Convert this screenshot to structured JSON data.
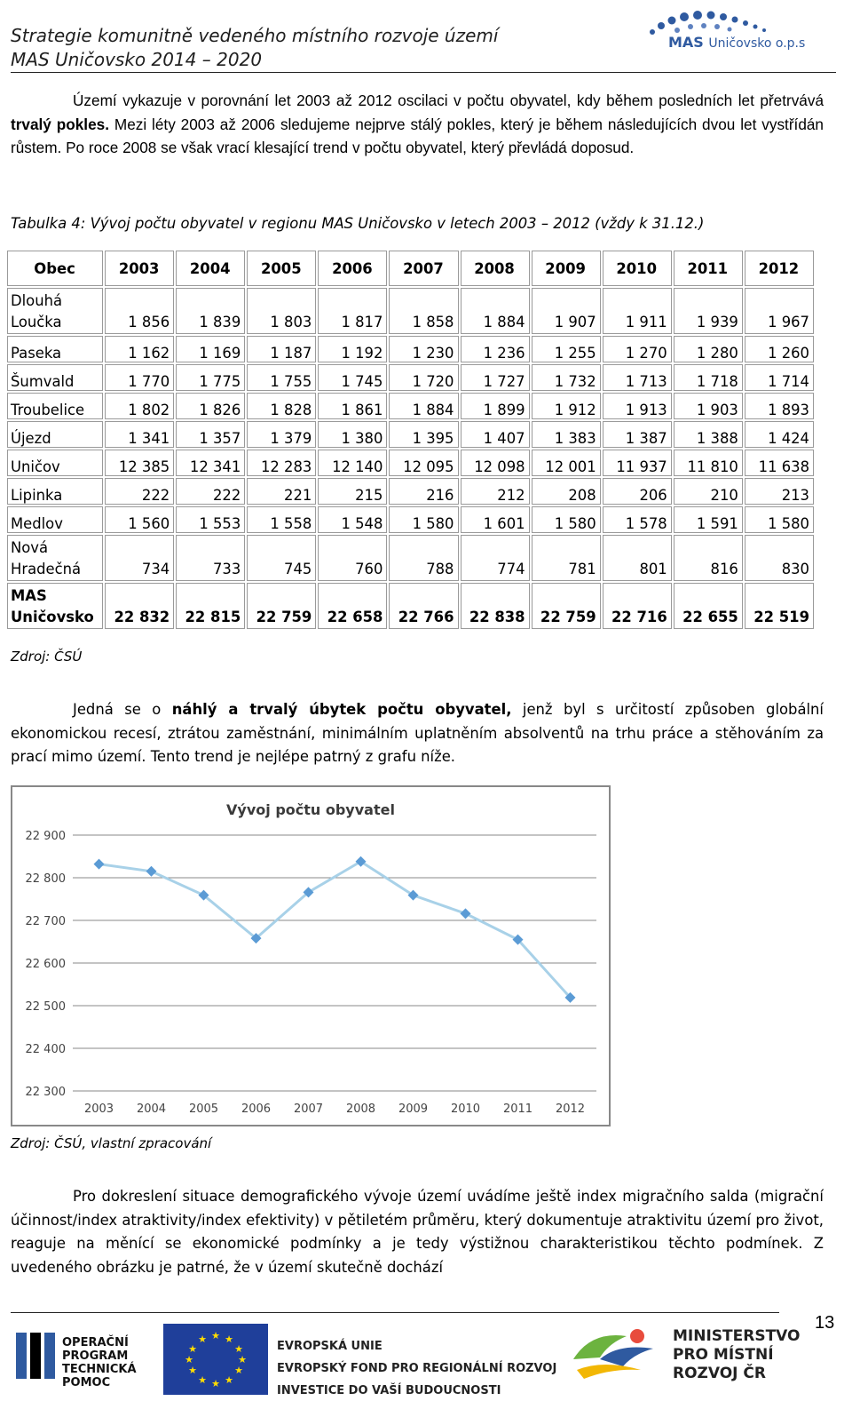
{
  "header": {
    "line1": "Strategie komunitně vedeného místního rozvoje území",
    "line2": "MAS Uničovsko 2014 – 2020",
    "logo_main": "MAS",
    "logo_sub": "Uničovsko o.p.s"
  },
  "para1": {
    "t1": "Území vykazuje v porovnání let 2003 až 2012 oscilaci v počtu obyvatel, kdy během posledních let přetrvává ",
    "b1": "trvalý pokles.",
    "t2": " Mezi léty 2003 až 2006 sledujeme nejprve stálý pokles, který je během následujících dvou let vystřídán růstem. Po roce 2008 se však vrací klesající trend v počtu obyvatel, který převládá doposud."
  },
  "table_caption": "Tabulka 4: Vývoj počtu obyvatel v regionu MAS Uničovsko v letech 2003 – 2012 (vždy k 31.12.)",
  "table": {
    "header": [
      "Obec",
      "2003",
      "2004",
      "2005",
      "2006",
      "2007",
      "2008",
      "2009",
      "2010",
      "2011",
      "2012"
    ],
    "rows": [
      {
        "name": [
          "Dlouhá",
          "Loučka"
        ],
        "values": [
          "1 856",
          "1 839",
          "1 803",
          "1 817",
          "1 858",
          "1 884",
          "1 907",
          "1 911",
          "1 939",
          "1 967"
        ]
      },
      {
        "name": [
          "Paseka"
        ],
        "values": [
          "1 162",
          "1 169",
          "1 187",
          "1 192",
          "1 230",
          "1 236",
          "1 255",
          "1 270",
          "1 280",
          "1 260"
        ]
      },
      {
        "name": [
          "Šumvald"
        ],
        "values": [
          "1 770",
          "1 775",
          "1 755",
          "1 745",
          "1 720",
          "1 727",
          "1 732",
          "1 713",
          "1 718",
          "1 714"
        ]
      },
      {
        "name": [
          "Troubelice"
        ],
        "values": [
          "1 802",
          "1 826",
          "1 828",
          "1 861",
          "1 884",
          "1 899",
          "1 912",
          "1 913",
          "1 903",
          "1 893"
        ]
      },
      {
        "name": [
          "Újezd"
        ],
        "values": [
          "1 341",
          "1 357",
          "1 379",
          "1 380",
          "1 395",
          "1 407",
          "1 383",
          "1 387",
          "1 388",
          "1 424"
        ]
      },
      {
        "name": [
          "Uničov"
        ],
        "values": [
          "12 385",
          "12 341",
          "12 283",
          "12 140",
          "12 095",
          "12 098",
          "12 001",
          "11 937",
          "11 810",
          "11 638"
        ]
      },
      {
        "name": [
          "Lipinka"
        ],
        "values": [
          "222",
          "222",
          "221",
          "215",
          "216",
          "212",
          "208",
          "206",
          "210",
          "213"
        ]
      },
      {
        "name": [
          "Medlov"
        ],
        "values": [
          "1 560",
          "1 553",
          "1 558",
          "1 548",
          "1 580",
          "1 601",
          "1 580",
          "1 578",
          "1 591",
          "1 580"
        ]
      },
      {
        "name": [
          "Nová",
          "Hradečná"
        ],
        "values": [
          "734",
          "733",
          "745",
          "760",
          "788",
          "774",
          "781",
          "801",
          "816",
          "830"
        ]
      },
      {
        "name": [
          "MAS",
          "Uničovsko"
        ],
        "values": [
          "22 832",
          "22 815",
          "22 759",
          "22 658",
          "22 766",
          "22 838",
          "22 759",
          "22 716",
          "22 655",
          "22 519"
        ],
        "total": true
      }
    ]
  },
  "table_source": "Zdroj: ČSÚ",
  "para2": {
    "t1": "Jedná se o ",
    "b1": "náhlý a trvalý úbytek počtu obyvatel,",
    "t2": " jenž byl s určitostí způsoben globální ekonomickou recesí, ztrátou zaměstnání, minimálním uplatněním absolventů na trhu práce a stěhováním za prací mimo území. Tento trend je nejlépe patrný z grafu níže."
  },
  "chart_data": {
    "type": "line",
    "title": "Vývoj počtu obyvatel",
    "xlabel": "",
    "ylabel": "",
    "categories": [
      "2003",
      "2004",
      "2005",
      "2006",
      "2007",
      "2008",
      "2009",
      "2010",
      "2011",
      "2012"
    ],
    "series": [
      {
        "values": [
          22832,
          22815,
          22759,
          22658,
          22766,
          22838,
          22759,
          22716,
          22655,
          22519
        ]
      }
    ],
    "ylim": [
      22300,
      22900
    ],
    "yticks": [
      22300,
      22400,
      22500,
      22600,
      22700,
      22800,
      22900
    ],
    "ytick_labels": [
      "22 300",
      "22 400",
      "22 500",
      "22 600",
      "22 700",
      "22 800",
      "22 900"
    ],
    "grid": true,
    "legend": "none",
    "line_color": "#a8d1e8",
    "marker_color": "#5b9bd5"
  },
  "chart_source": "Zdroj: ČSÚ, vlastní zpracování",
  "para3": "Pro dokreslení situace demografického vývoje území uvádíme ještě index migračního salda (migrační účinnost/index atraktivity/index efektivity) v pětiletém průměru, který dokumentuje atraktivitu území pro život, reaguje na měnící se ekonomické podmínky a je tedy výstižnou charakteristikou těchto podmínek. Z uvedeného obrázku je patrné, že v území skutečně dochází",
  "footer": {
    "page_number": "13",
    "op_text": [
      "OPERAČNÍ",
      "PROGRAM",
      "TECHNICKÁ",
      "POMOC"
    ],
    "eu_text": [
      "EVROPSKÁ UNIE",
      "EVROPSKÝ FOND PRO REGIONÁLNÍ ROZVOJ",
      "INVESTICE DO VAŠÍ BUDOUCNOSTI"
    ],
    "mmr_text": [
      "MINISTERSTVO",
      "PRO MÍSTNÍ",
      "ROZVOJ ČR"
    ]
  }
}
